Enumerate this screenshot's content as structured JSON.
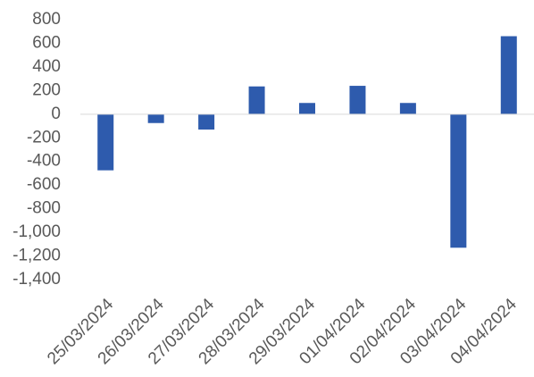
{
  "chart_data": {
    "type": "bar",
    "title": "",
    "xlabel": "",
    "ylabel": "",
    "categories": [
      "25/03/2024",
      "26/03/2024",
      "27/03/2024",
      "28/03/2024",
      "29/03/2024",
      "01/04/2024",
      "02/04/2024",
      "03/04/2024",
      "04/04/2024"
    ],
    "values": [
      -475,
      -75,
      -130,
      235,
      95,
      240,
      95,
      -1130,
      660
    ],
    "ylim": [
      -1400,
      800
    ],
    "yticks": [
      800,
      600,
      400,
      200,
      0,
      -200,
      -400,
      -600,
      -800,
      -1000,
      -1200,
      -1400
    ],
    "ytick_labels": [
      "800",
      "600",
      "400",
      "200",
      "0",
      "-200",
      "-400",
      "-600",
      "-800",
      "-1,000",
      "-1,200",
      "-1,400"
    ],
    "grid": false,
    "legend": "none",
    "bar_color": "#2E5BAD",
    "axis_color": "#D9D9D9",
    "text_color": "#595959"
  }
}
